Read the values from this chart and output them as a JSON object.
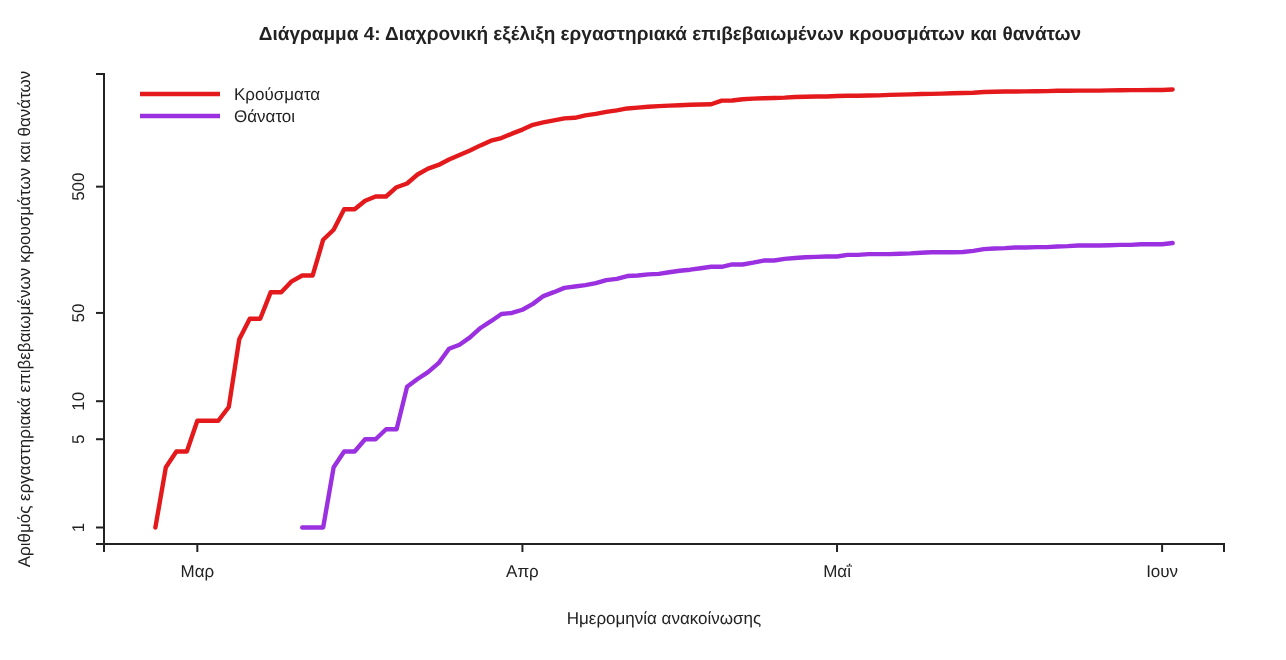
{
  "chart_data": {
    "type": "line",
    "title": "Διάγραμμα 4: Διαχρονική εξέλιξη εργαστηριακά επιβεβαιωμένων κρουσμάτων και θανάτων",
    "xlabel": "Ημερομηνία ανακοίνωσης",
    "ylabel": "Αριθμός εργαστηριακά επιβεβαιωμένων κρουσμάτων και θανάτων",
    "log": "y",
    "legend": "top left",
    "categories": [
      null,
      null,
      null,
      null,
      "Μαρ",
      null,
      null,
      null,
      null,
      null,
      null,
      null,
      null,
      null,
      null,
      null,
      null,
      null,
      null,
      null,
      null,
      null,
      null,
      null,
      null,
      null,
      null,
      null,
      null,
      null,
      null,
      null,
      null,
      null,
      null,
      "Απρ",
      null,
      null,
      null,
      null,
      null,
      null,
      null,
      null,
      null,
      null,
      null,
      null,
      null,
      null,
      null,
      null,
      null,
      null,
      null,
      null,
      null,
      null,
      null,
      null,
      null,
      null,
      null,
      null,
      null,
      "Μαΐ",
      null,
      null,
      null,
      null,
      null,
      null,
      null,
      null,
      null,
      null,
      null,
      null,
      null,
      null,
      null,
      null,
      null,
      null,
      null,
      null,
      null,
      null,
      null,
      null,
      null,
      null,
      null,
      null,
      null,
      null,
      "Ιουν",
      null
    ],
    "ylim": [
      0.74,
      3900
    ],
    "yticks": [
      1,
      5,
      10,
      50,
      500
    ],
    "series": [
      {
        "name": "Κρούσματα",
        "color": "#e3191c",
        "values": [
          1,
          3,
          4,
          4,
          7,
          7,
          7,
          9,
          31,
          45,
          45,
          73,
          73,
          89,
          99,
          99,
          190,
          228,
          331,
          331,
          387,
          418,
          418,
          495,
          530,
          624,
          695,
          743,
          821,
          892,
          966,
          1061,
          1156,
          1212,
          1314,
          1415,
          1544,
          1613,
          1673,
          1735,
          1755,
          1832,
          1884,
          1955,
          2011,
          2081,
          2114,
          2145,
          2170,
          2192,
          2207,
          2224,
          2235,
          2245,
          2401,
          2408,
          2463,
          2490,
          2506,
          2517,
          2534,
          2566,
          2576,
          2591,
          2591,
          2612,
          2620,
          2626,
          2632,
          2642,
          2663,
          2678,
          2691,
          2710,
          2716,
          2726,
          2744,
          2760,
          2770,
          2810,
          2819,
          2834,
          2836,
          2840,
          2850,
          2853,
          2874,
          2876,
          2878,
          2880,
          2882,
          2892,
          2903,
          2906,
          2909,
          2915,
          2917,
          2937
        ]
      },
      {
        "name": "Θάνατοι",
        "color": "#9b30e0",
        "values": [
          null,
          null,
          null,
          null,
          null,
          null,
          null,
          null,
          null,
          null,
          null,
          null,
          null,
          null,
          1,
          1,
          1,
          3,
          4,
          4,
          5,
          5,
          6,
          6,
          13,
          15,
          17,
          20,
          26,
          28,
          32,
          38,
          43,
          49,
          50,
          53,
          59,
          68,
          73,
          79,
          81,
          83,
          86,
          91,
          93,
          98,
          99,
          101,
          102,
          105,
          108,
          110,
          113,
          116,
          116,
          121,
          121,
          125,
          130,
          130,
          134,
          136,
          138,
          139,
          140,
          140,
          144,
          144,
          146,
          146,
          146,
          147,
          148,
          150,
          151,
          151,
          151,
          152,
          155,
          160,
          162,
          163,
          165,
          165,
          166,
          166,
          168,
          169,
          171,
          171,
          171,
          172,
          173,
          173,
          175,
          175,
          175,
          179
        ]
      }
    ]
  }
}
